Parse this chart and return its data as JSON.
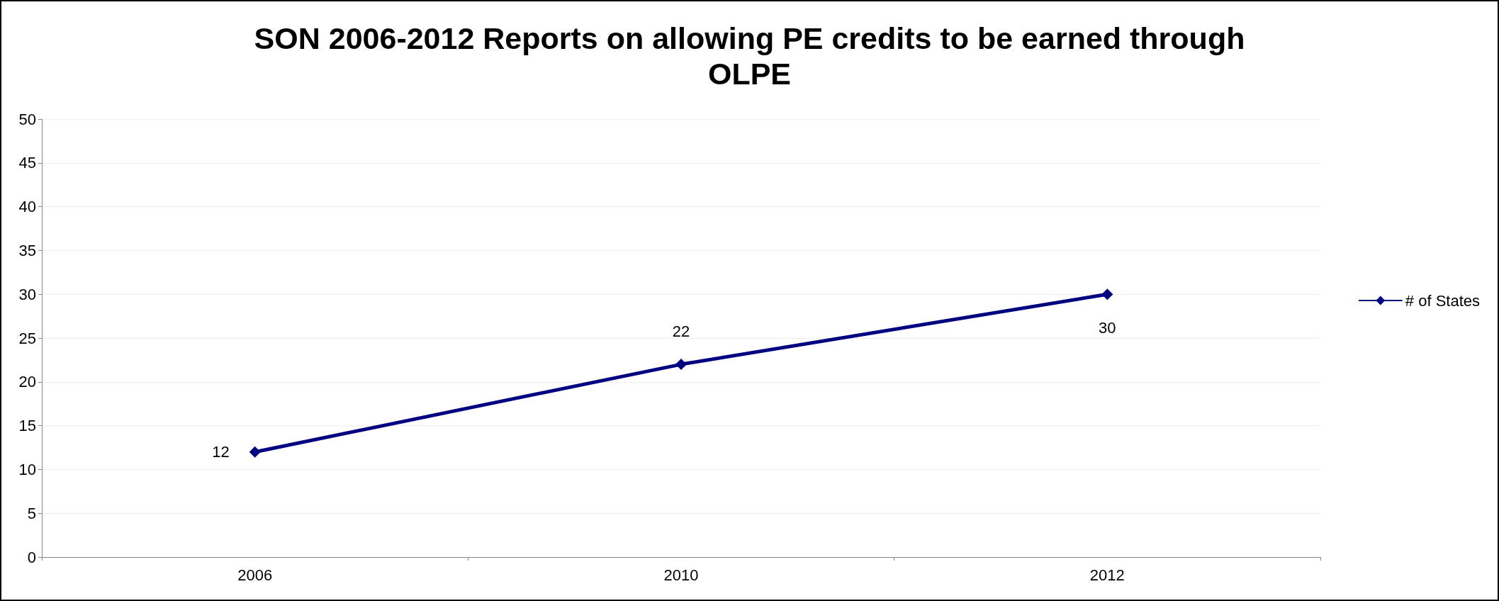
{
  "chart_data": {
    "type": "line",
    "title": "SON 2006-2012 Reports on allowing PE credits to be earned through\nOLPE",
    "categories": [
      "2006",
      "2010",
      "2012"
    ],
    "series": [
      {
        "name": "# of States",
        "color": "#000080",
        "values": [
          12,
          22,
          30
        ]
      }
    ],
    "ylim": [
      0,
      50
    ],
    "yticks": [
      0,
      5,
      10,
      15,
      20,
      25,
      30,
      35,
      40,
      45,
      50
    ],
    "grid": "y",
    "legend": "right",
    "marker": "diamond",
    "line_style": "solid",
    "data_labels": true
  }
}
